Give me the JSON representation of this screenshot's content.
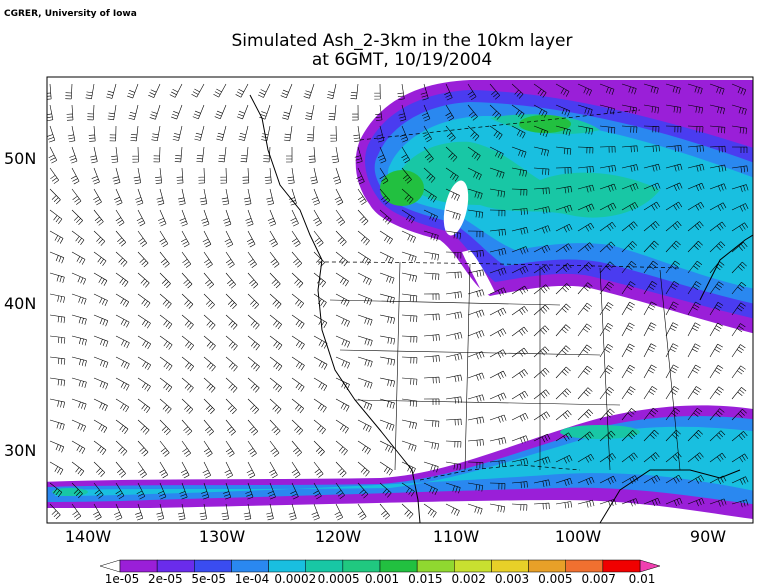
{
  "credit": "CGRER, University of Iowa",
  "title": [
    "Simulated Ash_2-3km in the 10km layer",
    "at 6GMT, 10/19/2004"
  ],
  "longitude_labels": [
    "140W",
    "130W",
    "120W",
    "110W",
    "100W",
    "90W"
  ],
  "latitude_labels": [
    "50N",
    "40N",
    "30N"
  ],
  "legend": {
    "labels": [
      "1e-05",
      "2e-05",
      "5e-05",
      "1e-04",
      "0.0002",
      "0.0005",
      "0.001",
      "0.015",
      "0.002",
      "0.003",
      "0.005",
      "0.007",
      "0.01"
    ]
  }
}
